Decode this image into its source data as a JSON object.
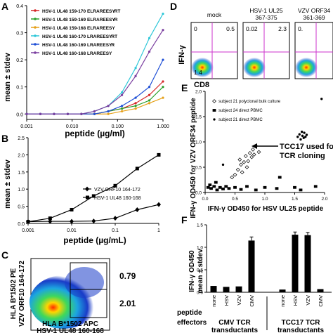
{
  "panel_letters": [
    "A",
    "B",
    "C",
    "D",
    "E",
    "F"
  ],
  "colors": {
    "red": "#d62728",
    "blue": "#1f4fd6",
    "magenta": "#c81fb4",
    "green": "#2ca02c",
    "orange": "#e6a11a",
    "cyan": "#2fc7d8",
    "purple": "#7b3fa0",
    "black": "#000000"
  },
  "chart_data": [
    {
      "panel": "A",
      "type": "line",
      "ylabel": "mean ± stdev",
      "xlabel": "peptide (µg/ml)",
      "xscale": "log",
      "xlim": [
        0.001,
        1.0
      ],
      "ylim": [
        -0.02,
        0.4
      ],
      "xticks": [
        "0.001",
        "0.010",
        "0.100",
        "1.000"
      ],
      "yticks": [
        "0.0",
        "0.1",
        "0.2",
        "0.3",
        "0.4"
      ],
      "x": [
        0.001,
        0.002,
        0.004,
        0.008,
        0.016,
        0.031,
        0.0625,
        0.125,
        0.25,
        0.5,
        1.0
      ],
      "series": [
        {
          "name": "HSV-1 UL48 159-170",
          "seq": "ELRAREESY",
          "seq_suffix": "RT",
          "color": "#d62728",
          "values": [
            0.0,
            0.0,
            0.0,
            0.0,
            0.0,
            0.0,
            0.01,
            0.02,
            0.04,
            0.07,
            0.12
          ]
        },
        {
          "name": "HSV-1 UL48 159-169",
          "seq": "ELRAREESY",
          "seq_suffix": "R",
          "color": "#2ca02c",
          "values": [
            0.0,
            0.0,
            0.0,
            0.0,
            0.0,
            0.0,
            0.01,
            0.02,
            0.03,
            0.05,
            0.1
          ]
        },
        {
          "name": "HSV-1 UL48 159-168",
          "seq": "ELRAREESY",
          "seq_suffix": "",
          "color": "#e6a11a",
          "values": [
            0.0,
            0.0,
            0.0,
            0.0,
            0.0,
            0.0,
            0.0,
            0.01,
            0.02,
            0.04,
            0.06
          ]
        },
        {
          "name": "HSV-1 UL48 160-170",
          "seq": "LRAREESY",
          "seq_suffix": "RT",
          "color": "#2fc7d8",
          "values": [
            0.0,
            0.0,
            0.0,
            0.0,
            0.0,
            0.01,
            0.03,
            0.08,
            0.17,
            0.28,
            0.37
          ]
        },
        {
          "name": "HSV-1 UL48 160-169",
          "seq": "LRAREESY",
          "seq_suffix": "R",
          "color": "#1f4fd6",
          "values": [
            0.0,
            0.0,
            0.0,
            0.0,
            0.0,
            0.0,
            0.01,
            0.03,
            0.06,
            0.1,
            0.2
          ]
        },
        {
          "name": "HSV-1 UL48 160-168",
          "seq": "LRAREESY",
          "seq_suffix": "",
          "color": "#7b3fa0",
          "values": [
            0.0,
            0.0,
            0.0,
            0.0,
            0.0,
            0.01,
            0.03,
            0.07,
            0.14,
            0.23,
            0.31
          ]
        }
      ]
    },
    {
      "panel": "B",
      "type": "line",
      "ylabel": "mean ± stdev",
      "xlabel": "peptide (µg/mL)",
      "xscale": "log",
      "xlim": [
        0.001,
        1.0
      ],
      "ylim": [
        0.0,
        2.5
      ],
      "xticks": [
        "0.001",
        "0.01",
        "0.1",
        "1"
      ],
      "yticks": [
        "0.0",
        "0.5",
        "1.0",
        "1.5",
        "2.0",
        "2.5"
      ],
      "x": [
        0.001,
        0.0032,
        0.01,
        0.032,
        0.1,
        0.32,
        1.0
      ],
      "series": [
        {
          "name": "VZV ORF10 164-172",
          "marker": "diamond",
          "values": [
            0.05,
            0.06,
            0.06,
            0.07,
            0.15,
            0.4,
            0.55
          ]
        },
        {
          "name": "HSV-1 UL48 160-168",
          "marker": "square",
          "values": [
            0.05,
            0.15,
            0.4,
            0.8,
            1.1,
            1.6,
            2.0
          ]
        }
      ]
    },
    {
      "panel": "C",
      "type": "scatter",
      "subtype": "flow-density",
      "ylabel_lines": [
        "HLA B*1502 PE",
        "VZV ORF10 164-172"
      ],
      "xlabel_lines": [
        "HLA B*1502 APC",
        "HSV-1 UL48 160-168"
      ],
      "gates": [
        {
          "value": "0.79"
        },
        {
          "value": "2.01"
        }
      ]
    },
    {
      "panel": "D",
      "type": "scatter",
      "subtype": "flow-quadrant",
      "ylabel": "IFN-γ",
      "xlabel": "CD8",
      "plots": [
        {
          "title": "mock",
          "ul": "0",
          "ur": "0.5",
          "ll": "1.4",
          "lr": ""
        },
        {
          "title": "HSV-1 UL25",
          "title2": "367-375",
          "ul": "0.02",
          "ur": "2.3",
          "ll": "",
          "lr": ""
        },
        {
          "title": "VZV ORF34",
          "title2": "361-369",
          "ul": "0.",
          "ur": "",
          "ll": "",
          "lr": ""
        }
      ]
    },
    {
      "panel": "E",
      "type": "scatter",
      "ylabel": "IFN-γ OD450 for VZV ORF34 peptide",
      "xlabel": "IFN-γ OD450 for HSV UL25 peptide",
      "xlim": [
        0.0,
        2.0
      ],
      "ylim": [
        0.0,
        2.0
      ],
      "xticks": [
        "0.0",
        "0.5",
        "1.0",
        "1.5",
        "2.0"
      ],
      "yticks": [
        "0.0",
        "0.5",
        "1.0",
        "1.5",
        "2.0"
      ],
      "annotation": [
        "TCC17 used for",
        "TCR cloning"
      ],
      "legend": [
        {
          "name": "subject 21 polyclonal bulk culture",
          "marker": "open-diamond"
        },
        {
          "name": "subject 24 direct PBMC",
          "marker": "square"
        },
        {
          "name": "subject 21 direct PBMC",
          "marker": "dot"
        }
      ],
      "series": [
        {
          "name": "subject 21 polyclonal bulk culture",
          "points": [
            [
              0.55,
              0.45
            ],
            [
              0.6,
              0.55
            ],
            [
              0.65,
              0.6
            ],
            [
              0.68,
              0.72
            ],
            [
              0.72,
              0.62
            ],
            [
              0.75,
              0.78
            ],
            [
              0.78,
              0.7
            ],
            [
              0.8,
              0.85
            ],
            [
              0.82,
              0.75
            ],
            [
              0.85,
              0.92
            ],
            [
              0.7,
              0.5
            ],
            [
              0.9,
              0.8
            ],
            [
              0.5,
              0.35
            ],
            [
              0.62,
              0.4
            ],
            [
              0.58,
              0.65
            ],
            [
              0.45,
              0.3
            ]
          ]
        },
        {
          "name": "subject 24 direct PBMC",
          "points": [
            [
              0.05,
              0.1
            ],
            [
              0.1,
              0.08
            ],
            [
              0.15,
              0.12
            ],
            [
              0.2,
              0.05
            ],
            [
              0.25,
              0.1
            ],
            [
              0.3,
              0.07
            ],
            [
              0.35,
              0.12
            ],
            [
              0.4,
              0.08
            ],
            [
              0.5,
              0.1
            ],
            [
              0.6,
              0.06
            ],
            [
              0.7,
              0.12
            ],
            [
              0.85,
              0.05
            ],
            [
              1.0,
              0.1
            ],
            [
              1.2,
              0.08
            ],
            [
              1.5,
              0.1
            ],
            [
              1.6,
              0.05
            ],
            [
              1.85,
              0.12
            ],
            [
              0.08,
              0.15
            ],
            [
              0.18,
              0.2
            ],
            [
              1.25,
              0.3
            ]
          ]
        },
        {
          "name": "subject 21 direct PBMC",
          "points": [
            [
              1.55,
              1.1
            ],
            [
              1.58,
              1.15
            ],
            [
              1.6,
              1.05
            ],
            [
              1.62,
              1.2
            ],
            [
              1.63,
              1.12
            ],
            [
              1.65,
              1.08
            ],
            [
              1.66,
              1.18
            ],
            [
              1.68,
              1.1
            ],
            [
              1.7,
              1.14
            ],
            [
              1.95,
              1.85
            ],
            [
              0.3,
              0.55
            ]
          ]
        }
      ]
    },
    {
      "panel": "F",
      "type": "bar",
      "ylabel_lines": [
        "IFN-γ OD450",
        "mean ± stdev"
      ],
      "ylim": [
        0.0,
        1.5
      ],
      "yticks": [
        "0.0",
        "0.5",
        "1.0",
        "1.5"
      ],
      "categories": [
        "none",
        "HSV",
        "VZV",
        "CMV",
        "none",
        "HSV",
        "VZV",
        "CMV"
      ],
      "values": [
        0.14,
        0.12,
        0.13,
        1.15,
        0.06,
        1.28,
        1.27,
        0.07
      ],
      "errors": [
        0.0,
        0.0,
        0.0,
        0.08,
        0.0,
        0.06,
        0.06,
        0.0
      ],
      "row_labels": [
        "peptide",
        "effectors"
      ],
      "groups": [
        {
          "label_lines": [
            "CMV TCR",
            "transductants"
          ]
        },
        {
          "label_lines": [
            "TCC17 TCR",
            "transductants"
          ]
        }
      ]
    }
  ]
}
